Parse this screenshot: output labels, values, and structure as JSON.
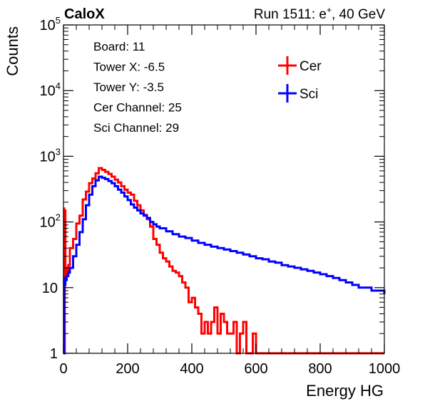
{
  "header": {
    "left_title": "CaloX",
    "right_title_pre": "Run 1511: e",
    "right_title_sup": "+",
    "right_title_post": ", 40 GeV"
  },
  "info_lines": [
    "Board: 11",
    "Tower X: -6.5",
    "Tower Y: -3.5",
    "Cer Channel: 25",
    "Sci Channel: 29"
  ],
  "colors": {
    "cer": "#ff0000",
    "sci": "#0000ff",
    "axis": "#000000"
  },
  "chart_data": {
    "type": "line",
    "step": true,
    "title": "",
    "xlabel": "Energy HG",
    "ylabel": "Counts",
    "xlim": [
      0,
      1000
    ],
    "ylim": [
      1,
      100000
    ],
    "yscale": "log",
    "grid": false,
    "legend_position": "top-right",
    "x_ticks": [
      0,
      200,
      400,
      600,
      800,
      1000
    ],
    "x_tick_labels": [
      "0",
      "200",
      "400",
      "600",
      "800",
      "1000"
    ],
    "y_tick_labels": [
      {
        "value": 1,
        "base": "1",
        "exp": ""
      },
      {
        "value": 10,
        "base": "10",
        "exp": ""
      },
      {
        "value": 100,
        "base": "10",
        "exp": "2"
      },
      {
        "value": 1000,
        "base": "10",
        "exp": "3"
      },
      {
        "value": 10000,
        "base": "10",
        "exp": "4"
      },
      {
        "value": 100000,
        "base": "10",
        "exp": "5"
      }
    ],
    "series": [
      {
        "name": "Cer",
        "color": "#ff0000",
        "x": [
          0,
          2,
          4,
          6,
          10,
          15,
          20,
          30,
          40,
          50,
          60,
          70,
          80,
          90,
          100,
          110,
          120,
          130,
          140,
          150,
          160,
          170,
          180,
          190,
          200,
          210,
          220,
          230,
          240,
          250,
          260,
          270,
          280,
          290,
          300,
          310,
          320,
          330,
          340,
          350,
          360,
          370,
          380,
          390,
          400,
          410,
          420,
          430,
          440,
          450,
          460,
          470,
          480,
          490,
          500,
          510,
          520,
          530,
          540,
          550,
          560,
          570,
          580,
          590,
          600,
          610,
          620,
          630,
          640,
          650,
          660,
          680,
          700,
          750,
          800,
          850,
          900,
          950,
          1000
        ],
        "y": [
          160,
          1,
          150,
          20,
          16,
          22,
          40,
          55,
          95,
          125,
          220,
          290,
          390,
          460,
          550,
          660,
          620,
          580,
          540,
          490,
          440,
          400,
          350,
          310,
          280,
          260,
          210,
          180,
          150,
          128,
          110,
          85,
          55,
          45,
          34,
          28,
          25,
          21,
          18,
          17,
          15,
          12,
          10,
          6,
          7,
          5,
          4,
          2,
          3,
          2,
          3,
          5,
          2,
          4,
          3,
          2,
          2,
          3,
          1,
          2,
          3,
          1,
          1,
          2,
          1,
          1,
          1,
          1,
          1,
          1,
          1,
          1,
          1,
          1,
          1,
          1,
          1,
          1,
          1
        ]
      },
      {
        "name": "Sci",
        "color": "#0000ff",
        "x": [
          0,
          2,
          4,
          6,
          10,
          15,
          20,
          30,
          40,
          50,
          60,
          70,
          80,
          90,
          100,
          110,
          120,
          130,
          140,
          150,
          160,
          170,
          180,
          190,
          200,
          210,
          220,
          230,
          240,
          250,
          260,
          270,
          280,
          290,
          300,
          320,
          340,
          360,
          380,
          400,
          420,
          440,
          460,
          480,
          500,
          520,
          540,
          560,
          580,
          600,
          620,
          640,
          660,
          680,
          700,
          720,
          740,
          760,
          780,
          800,
          820,
          840,
          860,
          880,
          900,
          920,
          940,
          960,
          980,
          1000
        ],
        "y": [
          1,
          14,
          11,
          13,
          15,
          17,
          20,
          30,
          45,
          70,
          110,
          180,
          260,
          350,
          430,
          490,
          470,
          450,
          420,
          390,
          350,
          310,
          280,
          245,
          215,
          185,
          165,
          150,
          135,
          125,
          115,
          100,
          92,
          85,
          80,
          72,
          65,
          60,
          57,
          52,
          48,
          45,
          42,
          40,
          38,
          36,
          34,
          32,
          30,
          28,
          27,
          25,
          24,
          22,
          21,
          20,
          19,
          18,
          17,
          16,
          15,
          14,
          13,
          12,
          11,
          10,
          10,
          9,
          9,
          8
        ]
      }
    ]
  }
}
